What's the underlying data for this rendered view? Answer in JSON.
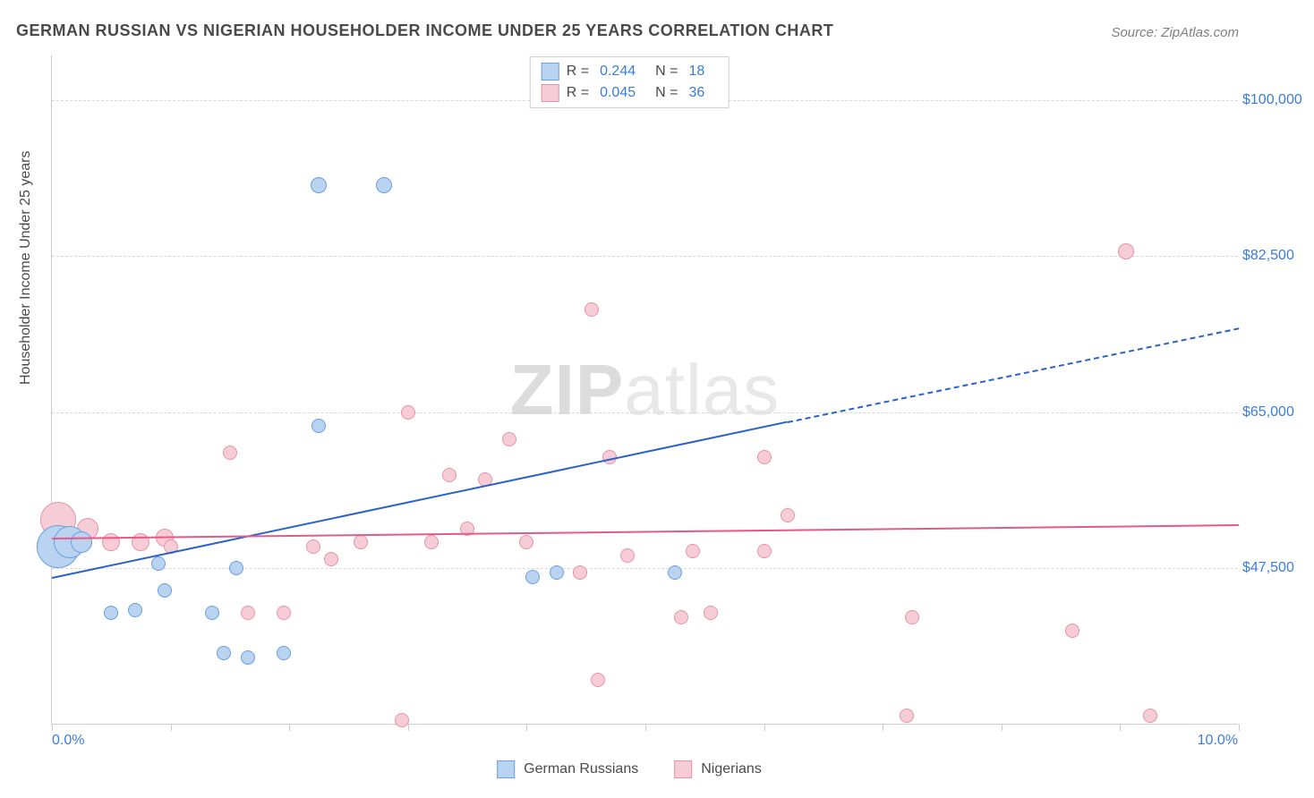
{
  "title": "GERMAN RUSSIAN VS NIGERIAN HOUSEHOLDER INCOME UNDER 25 YEARS CORRELATION CHART",
  "source": "Source: ZipAtlas.com",
  "watermark": {
    "bold": "ZIP",
    "light": "atlas"
  },
  "ylabel": "Householder Income Under 25 years",
  "xaxis": {
    "min": 0.0,
    "max": 10.0,
    "label_min": "0.0%",
    "label_max": "10.0%",
    "ticks": [
      0,
      1,
      2,
      3,
      4,
      5,
      6,
      7,
      8,
      9,
      10
    ]
  },
  "yaxis": {
    "min": 30000,
    "max": 105000,
    "gridlines": [
      47500,
      65000,
      82500,
      100000
    ],
    "labels": [
      "$47,500",
      "$65,000",
      "$82,500",
      "$100,000"
    ]
  },
  "series": {
    "german_russians": {
      "label": "German Russians",
      "fill": "#b9d3f0",
      "stroke": "#6a9fe0",
      "r_value": "0.244",
      "n_value": "18",
      "trend": {
        "x1": 0.0,
        "y1": 46500,
        "x2": 6.2,
        "y2": 64000,
        "extend_x2": 10.0,
        "extend_y2": 74500,
        "color": "#2b62c9"
      },
      "points": [
        {
          "x": 0.05,
          "y": 50000,
          "r": 24
        },
        {
          "x": 0.15,
          "y": 50500,
          "r": 18
        },
        {
          "x": 0.25,
          "y": 50500,
          "r": 12
        },
        {
          "x": 0.5,
          "y": 42500,
          "r": 8
        },
        {
          "x": 0.7,
          "y": 42800,
          "r": 8
        },
        {
          "x": 0.9,
          "y": 48000,
          "r": 8
        },
        {
          "x": 0.95,
          "y": 45000,
          "r": 8
        },
        {
          "x": 1.35,
          "y": 42500,
          "r": 8
        },
        {
          "x": 1.45,
          "y": 38000,
          "r": 8
        },
        {
          "x": 1.55,
          "y": 47500,
          "r": 8
        },
        {
          "x": 1.65,
          "y": 37500,
          "r": 8
        },
        {
          "x": 1.95,
          "y": 38000,
          "r": 8
        },
        {
          "x": 2.25,
          "y": 63500,
          "r": 8
        },
        {
          "x": 2.25,
          "y": 90500,
          "r": 9
        },
        {
          "x": 2.8,
          "y": 90500,
          "r": 9
        },
        {
          "x": 4.05,
          "y": 46500,
          "r": 8
        },
        {
          "x": 4.25,
          "y": 47000,
          "r": 8
        },
        {
          "x": 5.25,
          "y": 47000,
          "r": 8
        }
      ]
    },
    "nigerians": {
      "label": "Nigerians",
      "fill": "#f6cdd7",
      "stroke": "#e892a8",
      "r_value": "0.045",
      "n_value": "36",
      "trend": {
        "x1": 0.0,
        "y1": 51000,
        "x2": 10.0,
        "y2": 52500,
        "color": "#e15a8a"
      },
      "points": [
        {
          "x": 0.05,
          "y": 53000,
          "r": 20
        },
        {
          "x": 0.3,
          "y": 52000,
          "r": 12
        },
        {
          "x": 0.5,
          "y": 50500,
          "r": 10
        },
        {
          "x": 0.75,
          "y": 50500,
          "r": 10
        },
        {
          "x": 0.95,
          "y": 51000,
          "r": 10
        },
        {
          "x": 1.0,
          "y": 50000,
          "r": 8
        },
        {
          "x": 1.5,
          "y": 60500,
          "r": 8
        },
        {
          "x": 1.65,
          "y": 42500,
          "r": 8
        },
        {
          "x": 1.95,
          "y": 42500,
          "r": 8
        },
        {
          "x": 2.2,
          "y": 50000,
          "r": 8
        },
        {
          "x": 2.35,
          "y": 48500,
          "r": 8
        },
        {
          "x": 2.6,
          "y": 50500,
          "r": 8
        },
        {
          "x": 2.95,
          "y": 30500,
          "r": 8
        },
        {
          "x": 3.0,
          "y": 65000,
          "r": 8
        },
        {
          "x": 3.2,
          "y": 50500,
          "r": 8
        },
        {
          "x": 3.35,
          "y": 58000,
          "r": 8
        },
        {
          "x": 3.5,
          "y": 52000,
          "r": 8
        },
        {
          "x": 3.65,
          "y": 57500,
          "r": 8
        },
        {
          "x": 4.0,
          "y": 50500,
          "r": 8
        },
        {
          "x": 3.85,
          "y": 62000,
          "r": 8
        },
        {
          "x": 4.45,
          "y": 47000,
          "r": 8
        },
        {
          "x": 4.6,
          "y": 35000,
          "r": 8
        },
        {
          "x": 4.55,
          "y": 76500,
          "r": 8
        },
        {
          "x": 4.7,
          "y": 60000,
          "r": 8
        },
        {
          "x": 4.85,
          "y": 49000,
          "r": 8
        },
        {
          "x": 5.3,
          "y": 42000,
          "r": 8
        },
        {
          "x": 5.4,
          "y": 49500,
          "r": 8
        },
        {
          "x": 5.55,
          "y": 42500,
          "r": 8
        },
        {
          "x": 6.0,
          "y": 60000,
          "r": 8
        },
        {
          "x": 6.0,
          "y": 49500,
          "r": 8
        },
        {
          "x": 6.2,
          "y": 53500,
          "r": 8
        },
        {
          "x": 7.2,
          "y": 31000,
          "r": 8
        },
        {
          "x": 7.25,
          "y": 42000,
          "r": 8
        },
        {
          "x": 8.6,
          "y": 40500,
          "r": 8
        },
        {
          "x": 9.05,
          "y": 83000,
          "r": 9
        },
        {
          "x": 9.25,
          "y": 31000,
          "r": 8
        }
      ]
    }
  },
  "legend_bottom": [
    {
      "label": "German Russians",
      "fill": "#b9d3f0",
      "stroke": "#6a9fe0"
    },
    {
      "label": "Nigerians",
      "fill": "#f6cdd7",
      "stroke": "#e892a8"
    }
  ],
  "colors": {
    "title": "#4a4a4a",
    "axis_label": "#3b7dd8",
    "grid": "#d8d8d8",
    "border": "#cccccc"
  },
  "fonts": {
    "title_size": 18,
    "label_size": 16,
    "watermark_size": 80
  }
}
